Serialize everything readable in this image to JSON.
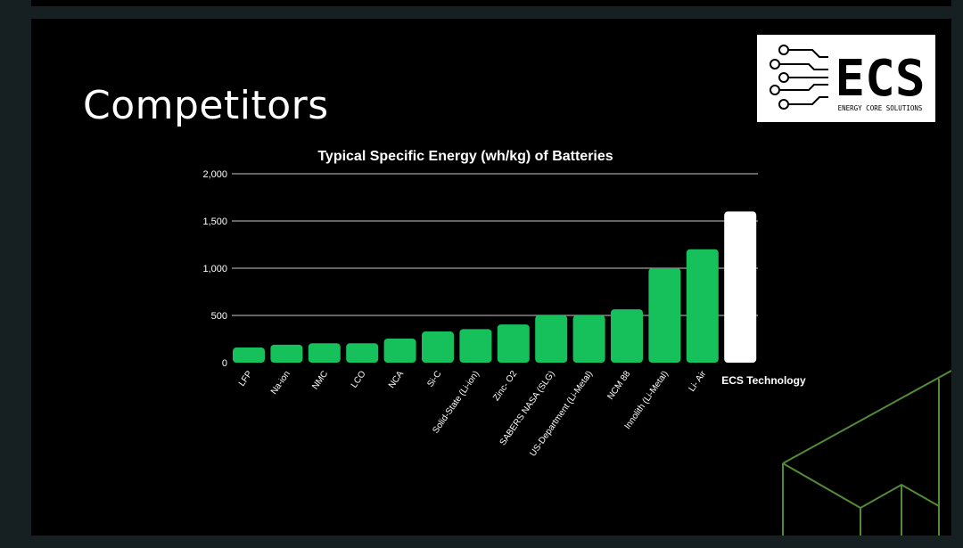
{
  "slide": {
    "title": "Competitors"
  },
  "logo": {
    "mark": "ECS",
    "tagline": "ENERGY CORE SOLUTIONS"
  },
  "colors": {
    "bar": "#16c05a",
    "highlight_bar": "#ffffff",
    "background": "#000000",
    "gridline": "#c8c8c8",
    "decor_line": "#6fb84a"
  },
  "chart_data": {
    "type": "bar",
    "title": "Typical Specific Energy (wh/kg) of Batteries",
    "xlabel": "",
    "ylabel": "",
    "ylim": [
      0,
      2000
    ],
    "yticks": [
      0,
      500,
      1000,
      1500,
      2000
    ],
    "ytick_labels": [
      "0",
      "500",
      "1,000",
      "1,500",
      "2,000"
    ],
    "grid": true,
    "categories": [
      "LFP",
      "Na-ion",
      "NMC",
      "LCO",
      "NCA",
      "Si-C",
      "Solid-State (Li-ion)",
      "Zinc- O2",
      "SABERS NASA (SLG)",
      "US-Department (Li-Metal)",
      "NCM 88",
      "Innolith (Li-Metal)",
      "Li- Air",
      "ECS Technology"
    ],
    "values": [
      160,
      190,
      205,
      205,
      255,
      330,
      355,
      405,
      500,
      500,
      565,
      1000,
      1200,
      1600
    ],
    "highlight": "ECS Technology"
  }
}
